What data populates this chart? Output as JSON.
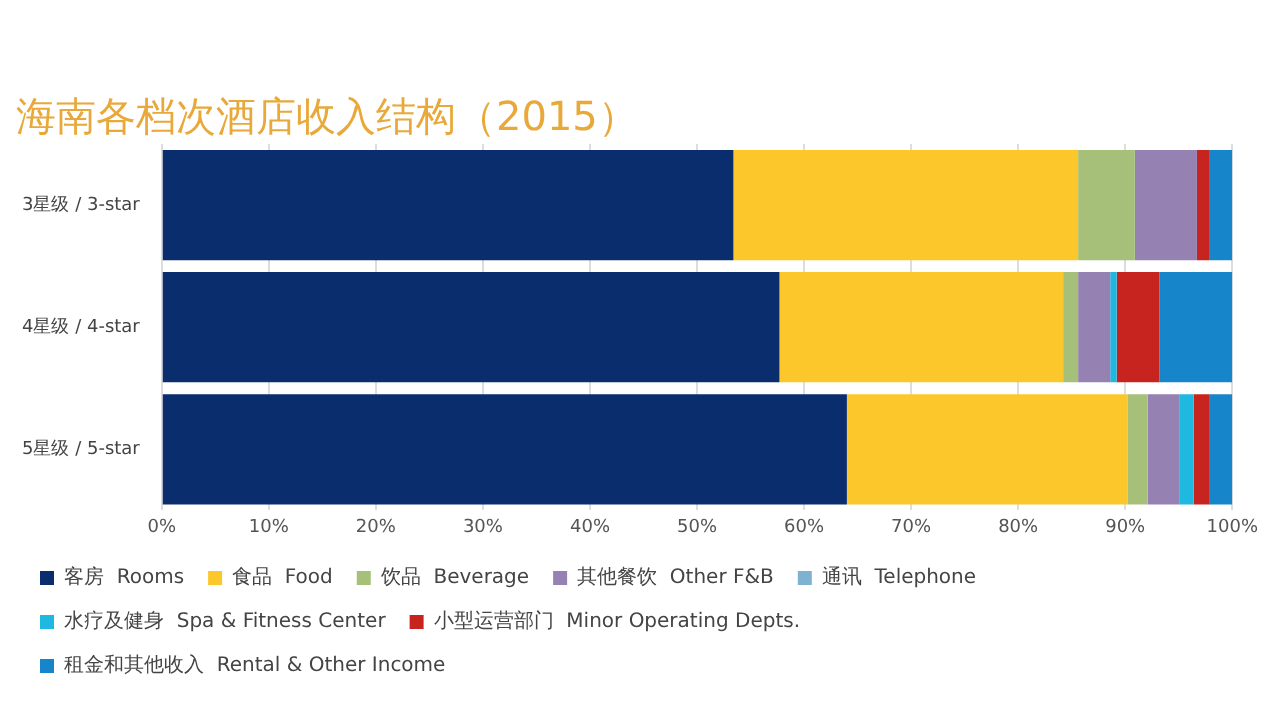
{
  "chart_data": {
    "type": "bar",
    "title": "海南各档次酒店收入结构（2015）",
    "orientation": "horizontal",
    "stacked": true,
    "categories": [
      "3星级 / 3-star",
      "4星级 / 4-star",
      "5星级 / 5-star"
    ],
    "series": [
      {
        "name": "客房  Rooms",
        "color": "#0a2d6e",
        "values": [
          53.4,
          57.7,
          64.0
        ]
      },
      {
        "name": "食品  Food",
        "color": "#fcc72a",
        "values": [
          32.2,
          26.5,
          26.2
        ]
      },
      {
        "name": "饮品  Beverage",
        "color": "#a6c07a",
        "values": [
          5.3,
          1.4,
          1.9
        ]
      },
      {
        "name": "其他餐饮  Other F&B",
        "color": "#9681b3",
        "values": [
          5.8,
          3.0,
          3.0
        ]
      },
      {
        "name": "通讯  Telephone",
        "color": "#7fb2d1",
        "values": [
          0,
          0,
          0
        ]
      },
      {
        "name": "水疗及健身  Spa & Fitness Center",
        "color": "#1fb8e0",
        "values": [
          0,
          0.6,
          1.3
        ]
      },
      {
        "name": "小型运营部门  Minor Operating Depts.",
        "color": "#c8241f",
        "values": [
          1.2,
          4.0,
          1.5
        ]
      },
      {
        "name": "租金和其他收入  Rental & Other Income",
        "color": "#1785c9",
        "values": [
          2.1,
          6.8,
          2.1
        ]
      }
    ],
    "xlim": [
      0,
      100
    ],
    "xticks": [
      {
        "value": 0,
        "label": "0%"
      },
      {
        "value": 10,
        "label": "10%"
      },
      {
        "value": 20,
        "label": "20%"
      },
      {
        "value": 30,
        "label": "30%"
      },
      {
        "value": 40,
        "label": "40%"
      },
      {
        "value": 50,
        "label": "50%"
      },
      {
        "value": 60,
        "label": "60%"
      },
      {
        "value": 70,
        "label": "70%"
      },
      {
        "value": 80,
        "label": "80%"
      },
      {
        "value": 90,
        "label": "90%"
      },
      {
        "value": 100,
        "label": "100%"
      }
    ],
    "grid": "x",
    "legend": "bottom"
  }
}
